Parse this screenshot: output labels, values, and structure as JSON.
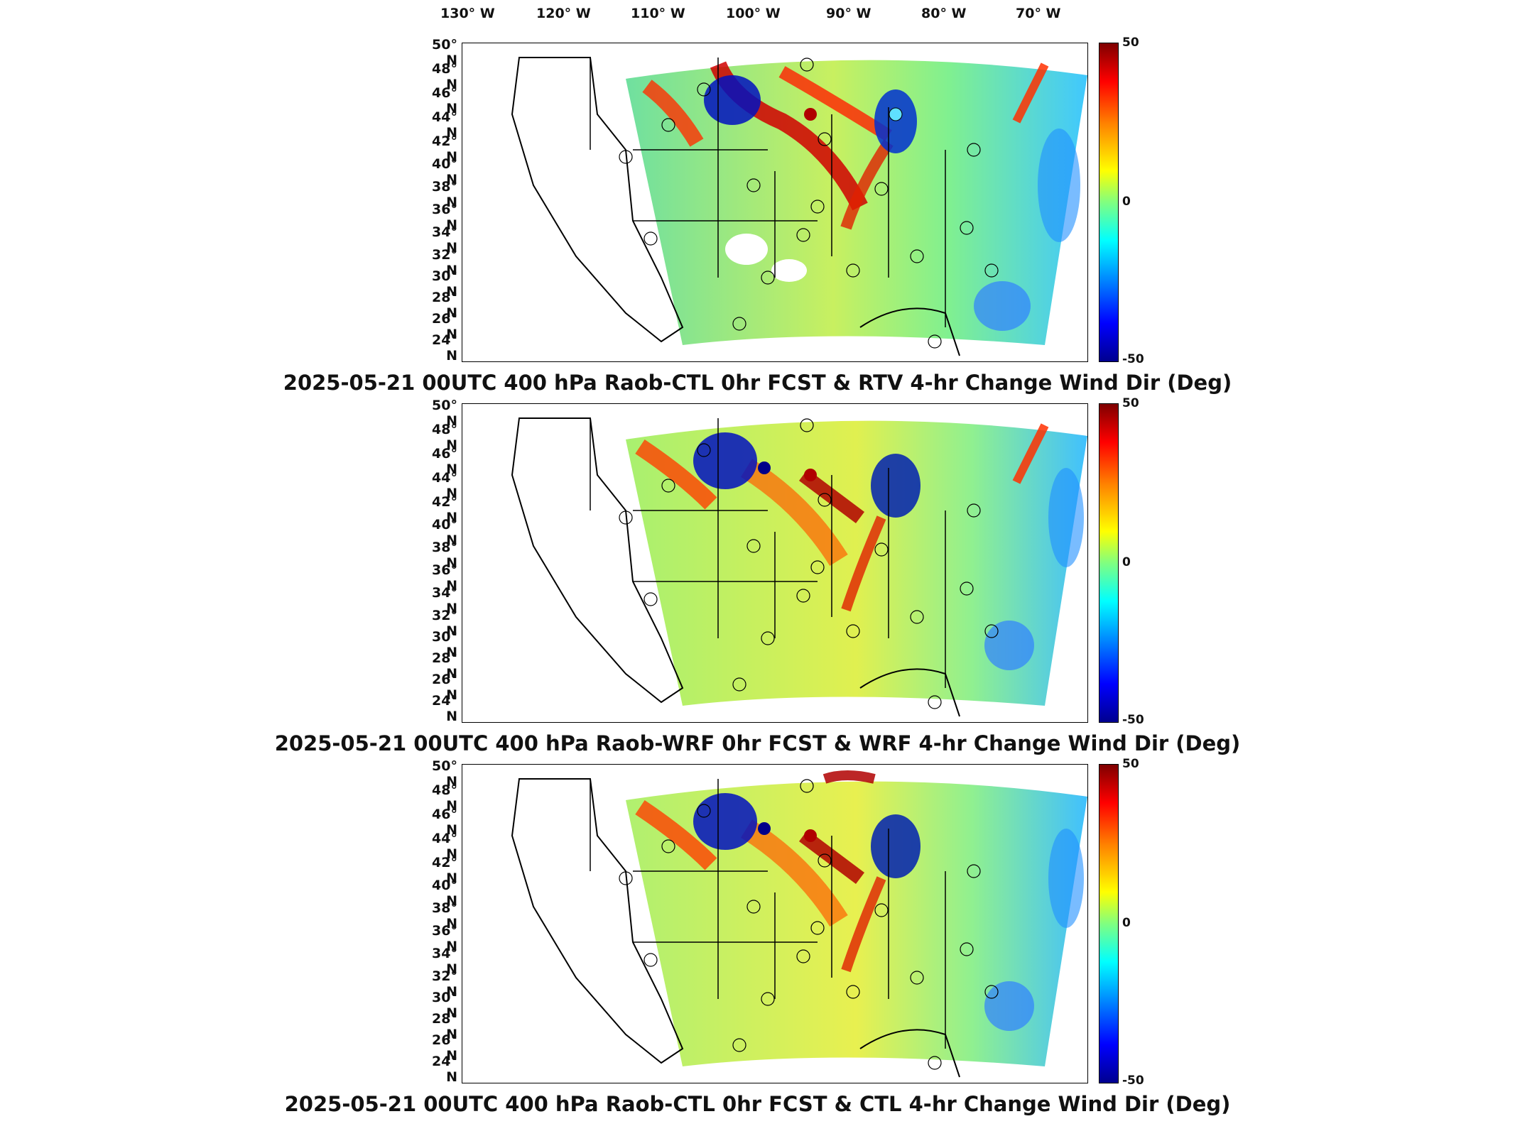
{
  "longitude_labels": [
    "130° W",
    "120° W",
    "110° W",
    "100° W",
    "90° W",
    "80° W",
    "70° W"
  ],
  "latitude_labels": [
    "50° N",
    "48° N",
    "46° N",
    "44° N",
    "42° N",
    "40° N",
    "38° N",
    "36° N",
    "34° N",
    "32° N",
    "30° N",
    "28° N",
    "26° N",
    "24° N"
  ],
  "colorbar": {
    "max": "50",
    "mid": "0",
    "min": "-50",
    "colormap": "jet"
  },
  "panels": [
    {
      "title": "2025-05-21 00UTC 400 hPa Raob-CTL 0hr FCST & RTV 4-hr Change Wind Dir (Deg)"
    },
    {
      "title": "2025-05-21 00UTC 400 hPa Raob-WRF 0hr FCST & WRF 4-hr Change Wind Dir (Deg)"
    },
    {
      "title": "2025-05-21 00UTC 400 hPa Raob-CTL 0hr FCST & CTL 4-hr Change Wind Dir (Deg)"
    }
  ],
  "colors": {
    "positive": "#b00000",
    "negative": "#00009a",
    "neutral": "#7fe07f",
    "border": "#000000"
  }
}
